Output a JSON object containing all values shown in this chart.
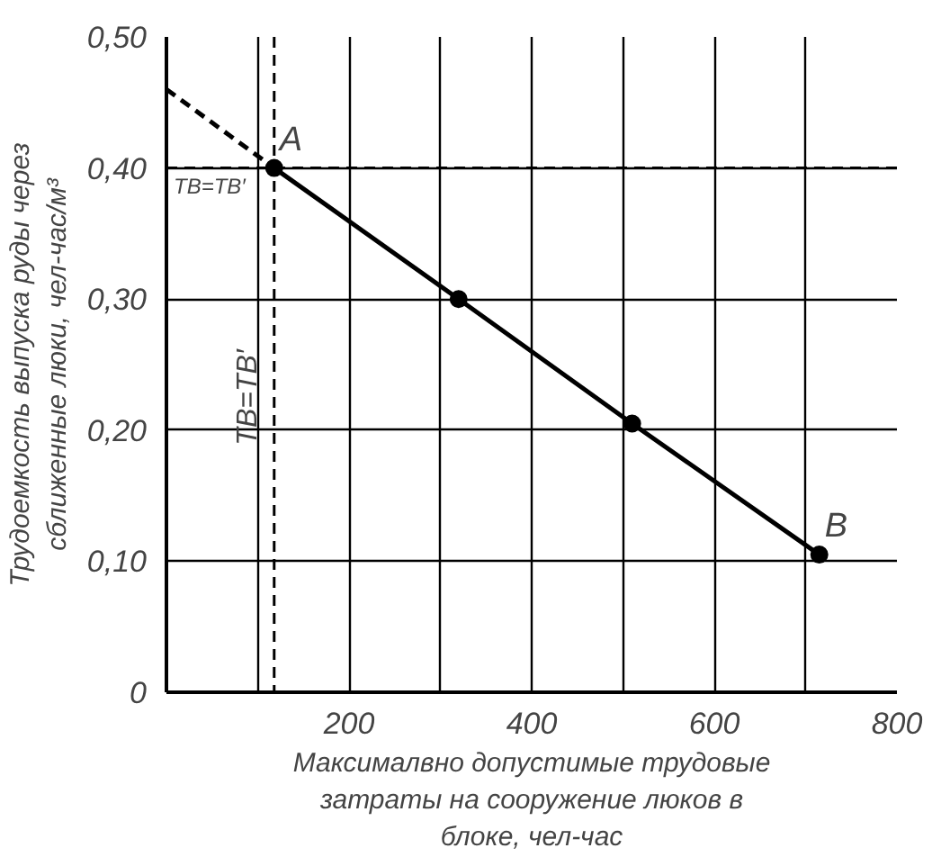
{
  "chart_data": {
    "type": "line",
    "xlabel": "Максималвно допустимые трудовые\nзатраты на сооружение люков в\nблоке, чел-час",
    "ylabel": "Трудоемкость выпуска руды через\nсближенные люки, чел-час/м³",
    "series": [
      {
        "x": [
          0,
          118
        ],
        "values": [
          0.46,
          0.4
        ],
        "color": "#000000",
        "line_style": "dashed"
      },
      {
        "x": [
          118,
          320,
          510,
          715
        ],
        "values": [
          0.4,
          0.3,
          0.205,
          0.105
        ],
        "color": "#000000",
        "line_style": "solid",
        "marker": "circle"
      }
    ],
    "xlim": [
      0,
      800
    ],
    "ylim": [
      0,
      0.5
    ],
    "xticks": [
      {
        "value": 100,
        "label": null
      },
      200,
      {
        "value": 300,
        "label": null
      },
      400,
      {
        "value": 500,
        "label": null
      },
      600,
      {
        "value": 700,
        "label": null
      },
      800
    ],
    "yticks": [
      0,
      {
        "value": 0.1,
        "label": "0,10"
      },
      {
        "value": 0.2,
        "label": "0,20"
      },
      {
        "value": 0.3,
        "label": "0,30"
      },
      {
        "value": 0.4,
        "label": "0,40"
      },
      {
        "value": 0.5,
        "label": "0,50"
      }
    ],
    "grid": true,
    "ref_lines": [
      {
        "axis": "x",
        "value": 118,
        "label": "TВ=TВ′",
        "line_style": "dashed",
        "color": "#000000"
      },
      {
        "axis": "y",
        "value": 0.4,
        "label": "TВ=TВ′",
        "line_style": "dashed",
        "color": "#000000"
      }
    ],
    "annotations": [
      {
        "text": "A",
        "x": 118,
        "y": 0.4
      },
      {
        "text": "B",
        "x": 715,
        "y": 0.105
      }
    ]
  }
}
